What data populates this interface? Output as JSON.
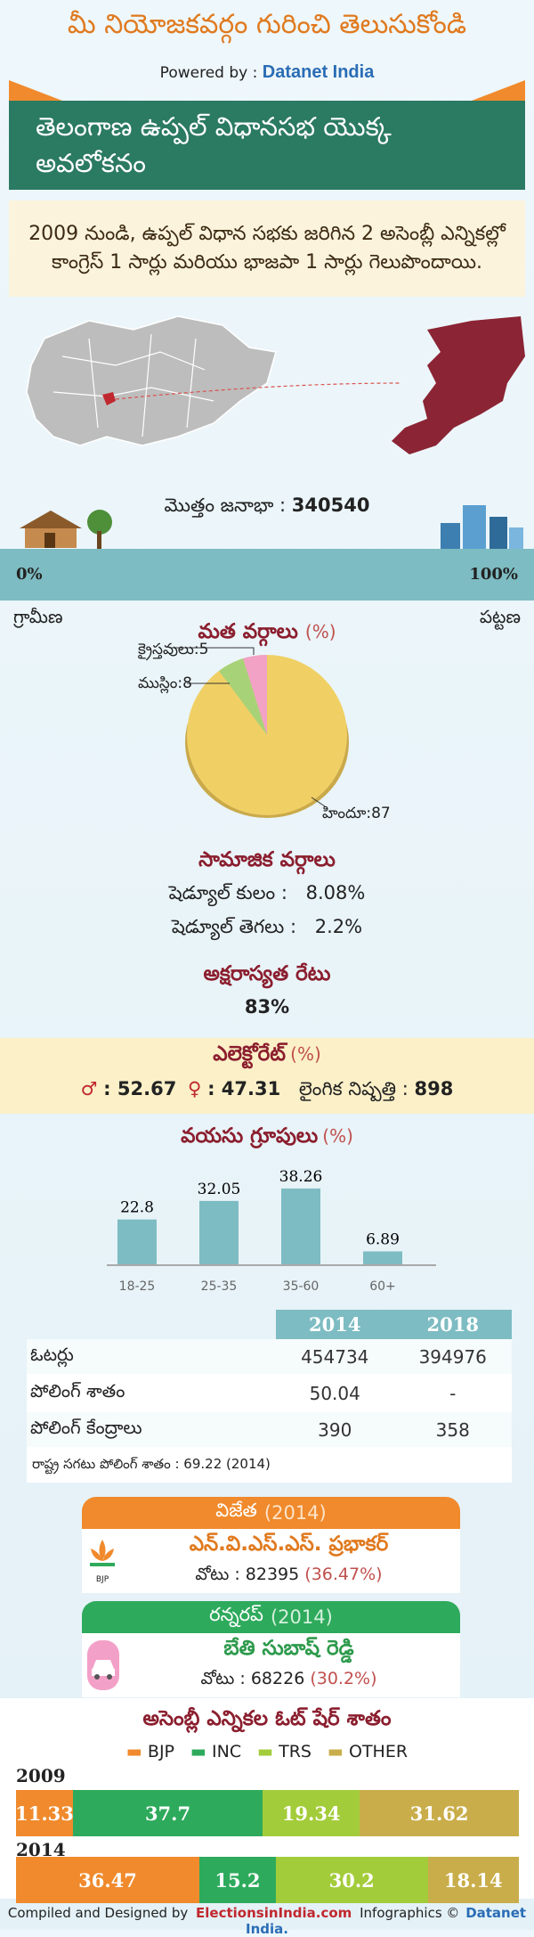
{
  "header": {
    "title": "మీ నియోజకవర్గం గురించి తెలుసుకోండి",
    "powered_by": "Powered by :",
    "brand": "Datanet India"
  },
  "title": "తెలంగాణ ఉప్పల్ విధానసభ యొక్క అవలోకనం",
  "summary": "2009 నుండి, ఉప్పల్ విధాన సభకు జరిగిన 2 అసెంబ్లీ ఎన్నికల్లో కాంగ్రెస్ 1 సార్లు మరియు భాజపా 1 సార్లు గెలుపొందాయి.",
  "population": {
    "label": "మొత్తం జనాభా :",
    "value": "340540",
    "rural_pct": "0%",
    "urban_pct": "100%",
    "rural_label": "గ్రామీణ",
    "urban_label": "పట్టణ"
  },
  "religion": {
    "title": "మత వర్గాలు",
    "unit": "(%)",
    "labels": [
      "క్రైస్తవులు:5",
      "ముస్లిం:8",
      "హిందూ:87"
    ],
    "colors": [
      "#f2a2c5",
      "#a8d277",
      "#f0d065"
    ]
  },
  "social": {
    "title": "సామాజిక వర్గాలు",
    "rows": [
      {
        "label": "షెడ్యూల్ కులం :",
        "value": "8.08%"
      },
      {
        "label": "షెడ్యూల్ తెగలు :",
        "value": "2.2%"
      }
    ]
  },
  "literacy": {
    "title": "అక్షరాస్యత రేటు",
    "value": "83%"
  },
  "electorate": {
    "title": "ఎలెక్టోరేట్",
    "unit": "(%)",
    "male": ": 52.67",
    "female": ": 47.31",
    "sex_ratio_label": "లైంగిక నిష్పత్తి :",
    "sex_ratio": "898"
  },
  "chart_data": {
    "type": "bar",
    "title": "వయసు గ్రూపులు",
    "unit": "(%)",
    "categories": [
      "18-25",
      "25-35",
      "35-60",
      "60+"
    ],
    "values": [
      22.8,
      32.05,
      38.26,
      6.89
    ],
    "value_labels": [
      "22.8",
      "32.05",
      "38.26",
      "6.89"
    ],
    "ylim": [
      0,
      40
    ],
    "color": "#7dbcc2"
  },
  "stats_table": {
    "headers": [
      "",
      "2014",
      "2018"
    ],
    "rows": [
      [
        "ఓటర్లు",
        "454734",
        "394976"
      ],
      [
        "పోలింగ్ శాతం",
        "50.04",
        "-"
      ],
      [
        "పోలింగ్ కేంద్రాలు",
        "390",
        "358"
      ]
    ],
    "note": "రాష్ట్ర సగటు పోలింగ్ శాతం : 69.22 (2014)"
  },
  "winner": {
    "title": "విజేత",
    "year": "(2014)",
    "name": "ఎన్.వి.ఎస్.ఎస్. ప్రభాకర్",
    "votes_label": "వోటు : 82395",
    "votes_pct": "(36.47%)",
    "party_logo": "BJP",
    "color": "#f08a2c"
  },
  "runner": {
    "title": "రన్నరప్",
    "year": "(2014)",
    "name": "బేతి సుబాష్ రెడ్డి",
    "votes_label": "వోటు : 68226",
    "votes_pct": "(30.2%)",
    "color": "#2eaa5c"
  },
  "vote_share": {
    "title": "అసెంబ్లీ ఎన్నికల ఓట్ షేర్ శాతం",
    "legend": [
      {
        "name": "BJP",
        "color": "#f08a2c"
      },
      {
        "name": "INC",
        "color": "#2eaa5c"
      },
      {
        "name": "TRS",
        "color": "#a3cc3a"
      },
      {
        "name": "OTHER",
        "color": "#c9ad4a"
      }
    ],
    "years": [
      {
        "year": "2009",
        "values": [
          11.33,
          37.7,
          19.34,
          31.62
        ],
        "labels": [
          "11.33",
          "37.7",
          "19.34",
          "31.62"
        ]
      },
      {
        "year": "2014",
        "values": [
          36.47,
          15.2,
          30.2,
          18.14
        ],
        "labels": [
          "36.47",
          "15.2",
          "30.2",
          "18.14"
        ]
      }
    ]
  },
  "footer": {
    "compiled": "Compiled and Designed by",
    "site": "ElectionsinIndia.com",
    "infographics": "Infographics ©",
    "brand": "Datanet India."
  }
}
